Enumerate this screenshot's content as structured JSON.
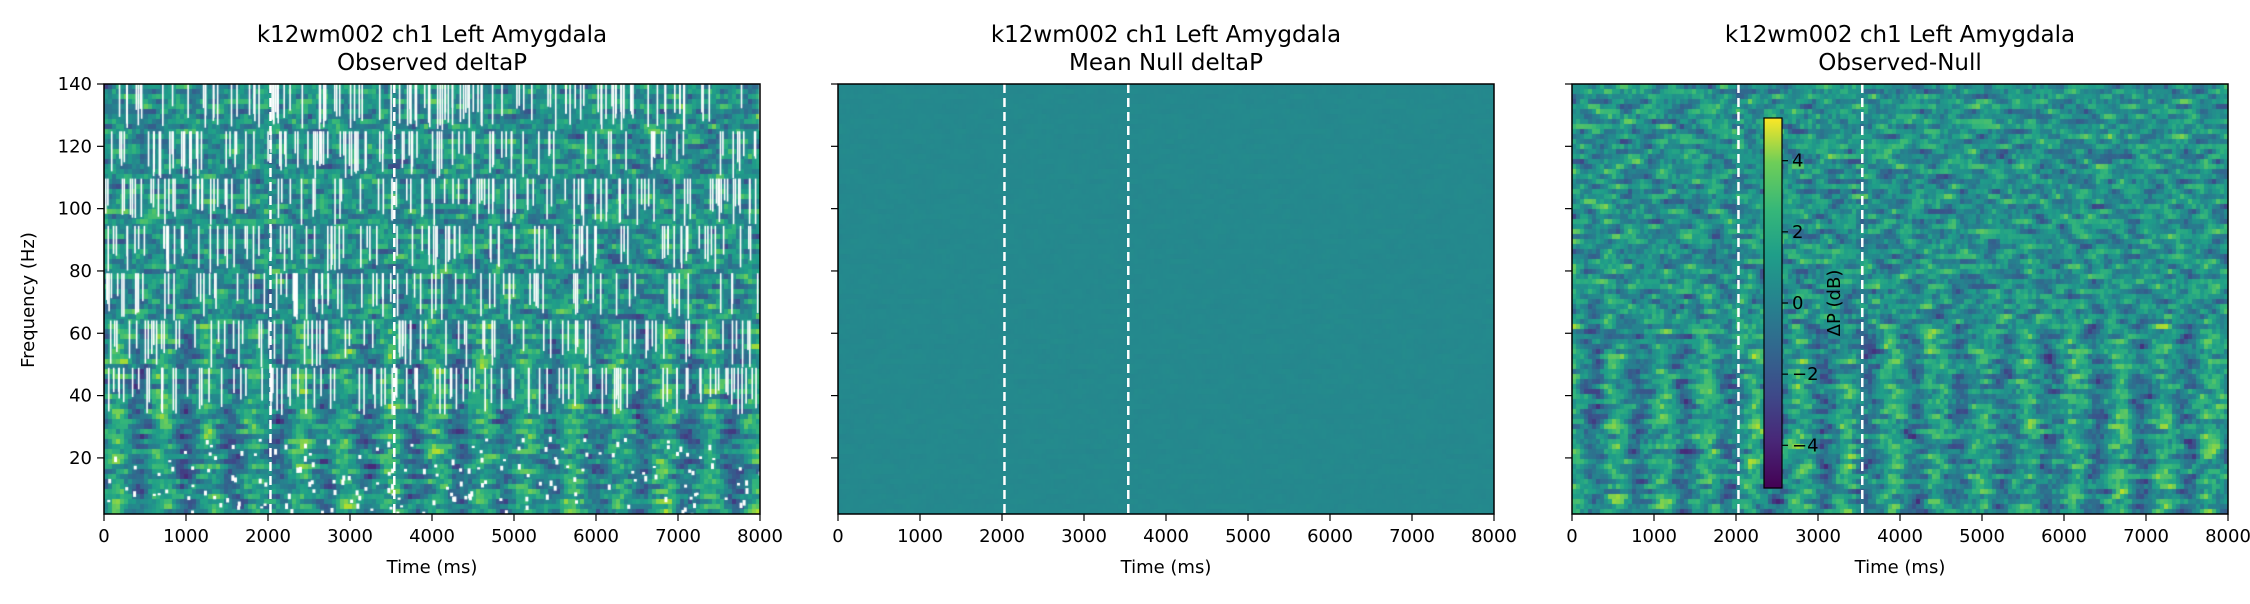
{
  "figure": {
    "shared_ylabel": "Frequency (Hz)"
  },
  "chart_data": [
    {
      "type": "heatmap",
      "title_line1": "k12wm002 ch1 Left Amygdala",
      "title_line2": "Observed deltaP",
      "xlabel": "Time (ms)",
      "ylabel": "Frequency (Hz)",
      "xlim": [
        0,
        8000
      ],
      "ylim": [
        2,
        140
      ],
      "xticks": [
        0,
        1000,
        2000,
        3000,
        4000,
        5000,
        6000,
        7000,
        8000
      ],
      "yticks": [
        20,
        40,
        60,
        80,
        100,
        120,
        140
      ],
      "ytick_labels_visible": true,
      "event_lines_ms": [
        2030,
        3540
      ],
      "colormap": "viridis",
      "value_range_db": [
        -5,
        5
      ],
      "masked_gaps": true
    },
    {
      "type": "heatmap",
      "title_line1": "k12wm002 ch1 Left Amygdala",
      "title_line2": "Mean Null deltaP",
      "xlabel": "Time (ms)",
      "xlim": [
        0,
        8000
      ],
      "ylim": [
        2,
        140
      ],
      "xticks": [
        0,
        1000,
        2000,
        3000,
        4000,
        5000,
        6000,
        7000,
        8000
      ],
      "yticks": [
        20,
        40,
        60,
        80,
        100,
        120,
        140
      ],
      "ytick_labels_visible": false,
      "event_lines_ms": [
        2030,
        3540
      ],
      "colormap": "viridis",
      "value_range_db": [
        -5,
        5
      ],
      "masked_gaps": false
    },
    {
      "type": "heatmap",
      "title_line1": "k12wm002 ch1 Left Amygdala",
      "title_line2": "Observed-Null",
      "xlabel": "Time (ms)",
      "xlim": [
        0,
        8000
      ],
      "ylim": [
        2,
        140
      ],
      "xticks": [
        0,
        1000,
        2000,
        3000,
        4000,
        5000,
        6000,
        7000,
        8000
      ],
      "yticks": [
        20,
        40,
        60,
        80,
        100,
        120,
        140
      ],
      "ytick_labels_visible": false,
      "event_lines_ms": [
        2030,
        3540
      ],
      "colormap": "viridis",
      "value_range_db": [
        -5,
        5
      ],
      "masked_gaps": false,
      "colorbar": {
        "label": "ΔP (dB)",
        "ticks": [
          4,
          2,
          0,
          -2,
          -4
        ],
        "tick_labels": [
          "4",
          "2",
          "0",
          "−2",
          "−4"
        ],
        "range": [
          -5.2,
          5.2
        ]
      }
    }
  ]
}
